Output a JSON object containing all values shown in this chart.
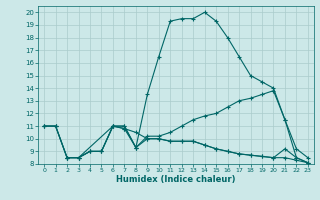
{
  "xlabel": "Humidex (Indice chaleur)",
  "background_color": "#cce8e8",
  "grid_color": "#aacccc",
  "line_color": "#006666",
  "xlim": [
    -0.5,
    23.5
  ],
  "ylim": [
    8,
    20.5
  ],
  "xticks": [
    0,
    1,
    2,
    3,
    4,
    5,
    6,
    7,
    8,
    9,
    10,
    11,
    12,
    13,
    14,
    15,
    16,
    17,
    18,
    19,
    20,
    21,
    22,
    23
  ],
  "yticks": [
    8,
    9,
    10,
    11,
    12,
    13,
    14,
    15,
    16,
    17,
    18,
    19,
    20
  ],
  "line1_x": [
    0,
    1,
    2,
    3,
    4,
    5,
    6,
    7,
    8,
    9,
    10,
    11,
    12,
    13,
    14,
    15,
    16,
    17,
    18,
    19,
    20,
    21,
    22,
    23
  ],
  "line1_y": [
    11,
    11,
    8.5,
    8.5,
    9,
    9,
    11,
    10.8,
    10.5,
    10,
    10,
    9.8,
    9.8,
    9.8,
    9.5,
    9.2,
    9,
    8.8,
    8.7,
    8.6,
    8.5,
    8.5,
    8.3,
    8.1
  ],
  "line2_x": [
    0,
    1,
    2,
    3,
    6,
    7,
    8,
    9,
    10,
    11,
    12,
    13,
    14,
    15,
    16,
    17,
    18,
    19,
    20,
    21,
    22,
    23
  ],
  "line2_y": [
    11,
    11,
    8.5,
    8.5,
    11,
    10.8,
    9.3,
    10.2,
    10.2,
    10.5,
    11,
    11.5,
    11.8,
    12,
    12.5,
    13,
    13.2,
    13.5,
    13.8,
    11.5,
    9.2,
    8.5
  ],
  "line3_x": [
    0,
    1,
    2,
    3,
    4,
    5,
    6,
    7,
    8,
    9,
    10,
    11,
    12,
    13,
    14,
    15,
    16,
    17,
    18,
    19,
    20,
    21,
    22,
    23
  ],
  "line3_y": [
    11,
    11,
    8.5,
    8.5,
    9,
    9,
    11,
    11,
    9.3,
    13.5,
    16.5,
    19.3,
    19.5,
    19.5,
    20,
    19.3,
    18,
    16.5,
    15,
    14.5,
    14,
    11.5,
    8.5,
    8.1
  ],
  "line4_x": [
    2,
    3,
    4,
    5,
    6,
    7,
    8,
    9,
    10,
    11,
    12,
    13,
    14,
    15,
    16,
    17,
    18,
    19,
    20,
    21,
    22,
    23
  ],
  "line4_y": [
    8.5,
    8.5,
    9,
    9,
    11,
    11,
    9.3,
    10,
    10,
    9.8,
    9.8,
    9.8,
    9.5,
    9.2,
    9,
    8.8,
    8.7,
    8.6,
    8.5,
    9.2,
    8.5,
    8.1
  ]
}
